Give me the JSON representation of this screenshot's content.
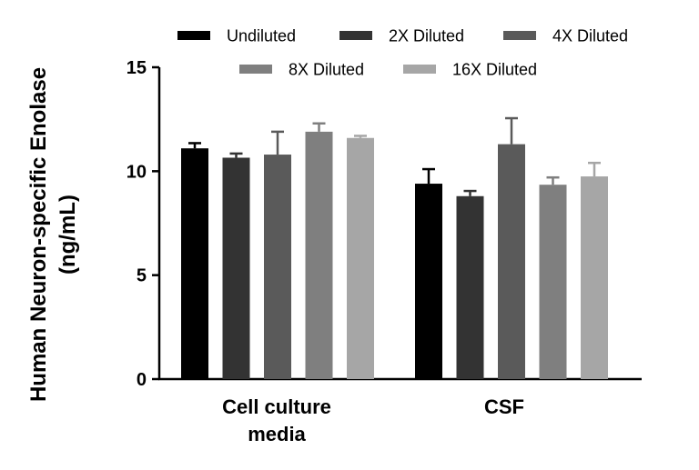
{
  "chart_data": {
    "type": "bar",
    "title": "",
    "ylabel_lines": [
      "Human Neuron-specific Enolase",
      "(ng/mL)"
    ],
    "xlabel": "",
    "ylim": [
      0,
      15
    ],
    "yticks": [
      0,
      5,
      10,
      15
    ],
    "categories": [
      {
        "lines": [
          "Cell culture",
          "media"
        ]
      },
      {
        "lines": [
          "CSF"
        ]
      }
    ],
    "series": [
      {
        "name": "Undiluted",
        "color": "#000000",
        "values": [
          11.1,
          9.4
        ],
        "errors": [
          0.25,
          0.7
        ]
      },
      {
        "name": "2X Diluted",
        "color": "#333333",
        "values": [
          10.65,
          8.8
        ],
        "errors": [
          0.2,
          0.25
        ]
      },
      {
        "name": "4X Diluted",
        "color": "#5a5a5a",
        "values": [
          10.8,
          11.3
        ],
        "errors": [
          1.1,
          1.25
        ]
      },
      {
        "name": "8X Diluted",
        "color": "#7f7f7f",
        "values": [
          11.9,
          9.35
        ],
        "errors": [
          0.4,
          0.35
        ]
      },
      {
        "name": "16X Diluted",
        "color": "#a6a6a6",
        "values": [
          11.6,
          9.75
        ],
        "errors": [
          0.1,
          0.65
        ]
      }
    ],
    "legend_position": "top"
  }
}
